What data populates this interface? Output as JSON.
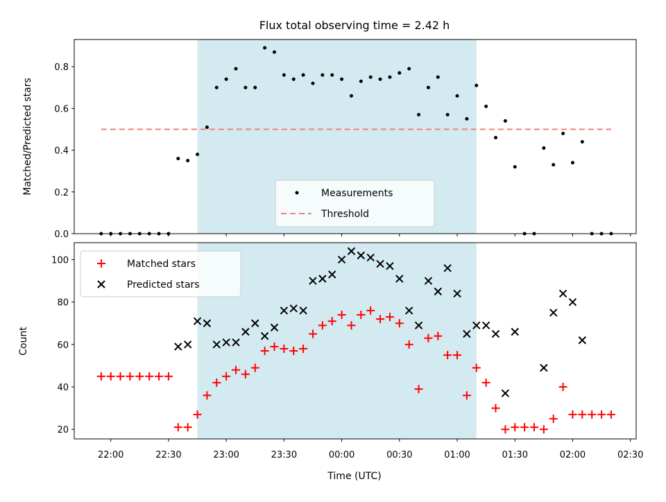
{
  "chart_data": {
    "type": "scatter",
    "title": "Flux total observing time = 2.42 h",
    "xlabel": "Time (UTC)",
    "x_ticks": [
      "22:00",
      "22:30",
      "23:00",
      "23:30",
      "00:00",
      "00:30",
      "01:00",
      "01:30",
      "02:00",
      "02:30"
    ],
    "x_tick_minutes": [
      0,
      30,
      60,
      90,
      120,
      150,
      180,
      210,
      240,
      270
    ],
    "xlim": [
      -19,
      273
    ],
    "observing_window": [
      45,
      190
    ],
    "colors": {
      "window": "#d3eaf0",
      "matched": "#ff0000",
      "predicted": "#000000",
      "threshold": "#f08080",
      "measurement": "#000000"
    },
    "top": {
      "ylabel": "Matched/Predicted stars",
      "ylim": [
        0,
        0.93
      ],
      "y_ticks": [
        0.0,
        0.2,
        0.4,
        0.6,
        0.8
      ],
      "y_tick_labels": [
        "0.0",
        "0.2",
        "0.4",
        "0.6",
        "0.8"
      ],
      "legend": [
        "Measurements",
        "Threshold"
      ],
      "legend_position": "lower center",
      "threshold": {
        "value": 0.5,
        "x_range": [
          -5,
          260
        ]
      },
      "measurements": [
        [
          -5,
          0
        ],
        [
          0,
          0
        ],
        [
          5,
          0
        ],
        [
          10,
          0
        ],
        [
          15,
          0
        ],
        [
          20,
          0
        ],
        [
          25,
          0
        ],
        [
          30,
          0
        ],
        [
          35,
          0.36
        ],
        [
          40,
          0.35
        ],
        [
          45,
          0.38
        ],
        [
          50,
          0.51
        ],
        [
          55,
          0.7
        ],
        [
          60,
          0.74
        ],
        [
          65,
          0.79
        ],
        [
          70,
          0.7
        ],
        [
          75,
          0.7
        ],
        [
          80,
          0.89
        ],
        [
          85,
          0.87
        ],
        [
          90,
          0.76
        ],
        [
          95,
          0.74
        ],
        [
          100,
          0.76
        ],
        [
          105,
          0.72
        ],
        [
          110,
          0.76
        ],
        [
          115,
          0.76
        ],
        [
          120,
          0.74
        ],
        [
          125,
          0.66
        ],
        [
          130,
          0.73
        ],
        [
          135,
          0.75
        ],
        [
          140,
          0.74
        ],
        [
          145,
          0.75
        ],
        [
          150,
          0.77
        ],
        [
          155,
          0.79
        ],
        [
          160,
          0.57
        ],
        [
          165,
          0.7
        ],
        [
          170,
          0.75
        ],
        [
          175,
          0.57
        ],
        [
          180,
          0.66
        ],
        [
          185,
          0.55
        ],
        [
          190,
          0.71
        ],
        [
          195,
          0.61
        ],
        [
          200,
          0.46
        ],
        [
          205,
          0.54
        ],
        [
          210,
          0.32
        ],
        [
          215,
          0
        ],
        [
          220,
          0
        ],
        [
          225,
          0.41
        ],
        [
          230,
          0.33
        ],
        [
          235,
          0.48
        ],
        [
          240,
          0.34
        ],
        [
          245,
          0.44
        ],
        [
          250,
          0
        ],
        [
          255,
          0
        ],
        [
          260,
          0
        ]
      ]
    },
    "bottom": {
      "ylabel": "Count",
      "ylim": [
        15.5,
        108
      ],
      "y_ticks": [
        20,
        40,
        60,
        80,
        100
      ],
      "y_tick_labels": [
        "20",
        "40",
        "60",
        "80",
        "100"
      ],
      "legend": [
        "Matched stars",
        "Predicted stars"
      ],
      "legend_position": "upper left",
      "matched": [
        [
          -5,
          45
        ],
        [
          0,
          45
        ],
        [
          5,
          45
        ],
        [
          10,
          45
        ],
        [
          15,
          45
        ],
        [
          20,
          45
        ],
        [
          25,
          45
        ],
        [
          30,
          45
        ],
        [
          35,
          21
        ],
        [
          40,
          21
        ],
        [
          45,
          27
        ],
        [
          50,
          36
        ],
        [
          55,
          42
        ],
        [
          60,
          45
        ],
        [
          65,
          48
        ],
        [
          70,
          46
        ],
        [
          75,
          49
        ],
        [
          80,
          57
        ],
        [
          85,
          59
        ],
        [
          90,
          58
        ],
        [
          95,
          57
        ],
        [
          100,
          58
        ],
        [
          105,
          65
        ],
        [
          110,
          69
        ],
        [
          115,
          71
        ],
        [
          120,
          74
        ],
        [
          125,
          69
        ],
        [
          130,
          74
        ],
        [
          135,
          76
        ],
        [
          140,
          72
        ],
        [
          145,
          73
        ],
        [
          150,
          70
        ],
        [
          155,
          60
        ],
        [
          160,
          39
        ],
        [
          165,
          63
        ],
        [
          170,
          64
        ],
        [
          175,
          55
        ],
        [
          180,
          55
        ],
        [
          185,
          36
        ],
        [
          190,
          49
        ],
        [
          195,
          42
        ],
        [
          200,
          30
        ],
        [
          205,
          20
        ],
        [
          210,
          21
        ],
        [
          215,
          21
        ],
        [
          220,
          21
        ],
        [
          225,
          20
        ],
        [
          230,
          25
        ],
        [
          235,
          40
        ],
        [
          240,
          27
        ],
        [
          245,
          27
        ],
        [
          250,
          27
        ],
        [
          255,
          27
        ],
        [
          260,
          27
        ]
      ],
      "predicted": [
        [
          35,
          59
        ],
        [
          40,
          60
        ],
        [
          45,
          71
        ],
        [
          50,
          70
        ],
        [
          55,
          60
        ],
        [
          60,
          61
        ],
        [
          65,
          61
        ],
        [
          70,
          66
        ],
        [
          75,
          70
        ],
        [
          80,
          64
        ],
        [
          85,
          68
        ],
        [
          90,
          76
        ],
        [
          95,
          77
        ],
        [
          100,
          76
        ],
        [
          105,
          90
        ],
        [
          110,
          91
        ],
        [
          115,
          93
        ],
        [
          120,
          100
        ],
        [
          125,
          104
        ],
        [
          130,
          102
        ],
        [
          135,
          101
        ],
        [
          140,
          98
        ],
        [
          145,
          97
        ],
        [
          150,
          91
        ],
        [
          155,
          76
        ],
        [
          160,
          69
        ],
        [
          165,
          90
        ],
        [
          170,
          85
        ],
        [
          175,
          96
        ],
        [
          180,
          84
        ],
        [
          185,
          65
        ],
        [
          190,
          69
        ],
        [
          195,
          69
        ],
        [
          200,
          65
        ],
        [
          205,
          37
        ],
        [
          210,
          66
        ],
        [
          225,
          49
        ],
        [
          230,
          75
        ],
        [
          235,
          84
        ],
        [
          240,
          80
        ],
        [
          245,
          62
        ]
      ]
    }
  }
}
